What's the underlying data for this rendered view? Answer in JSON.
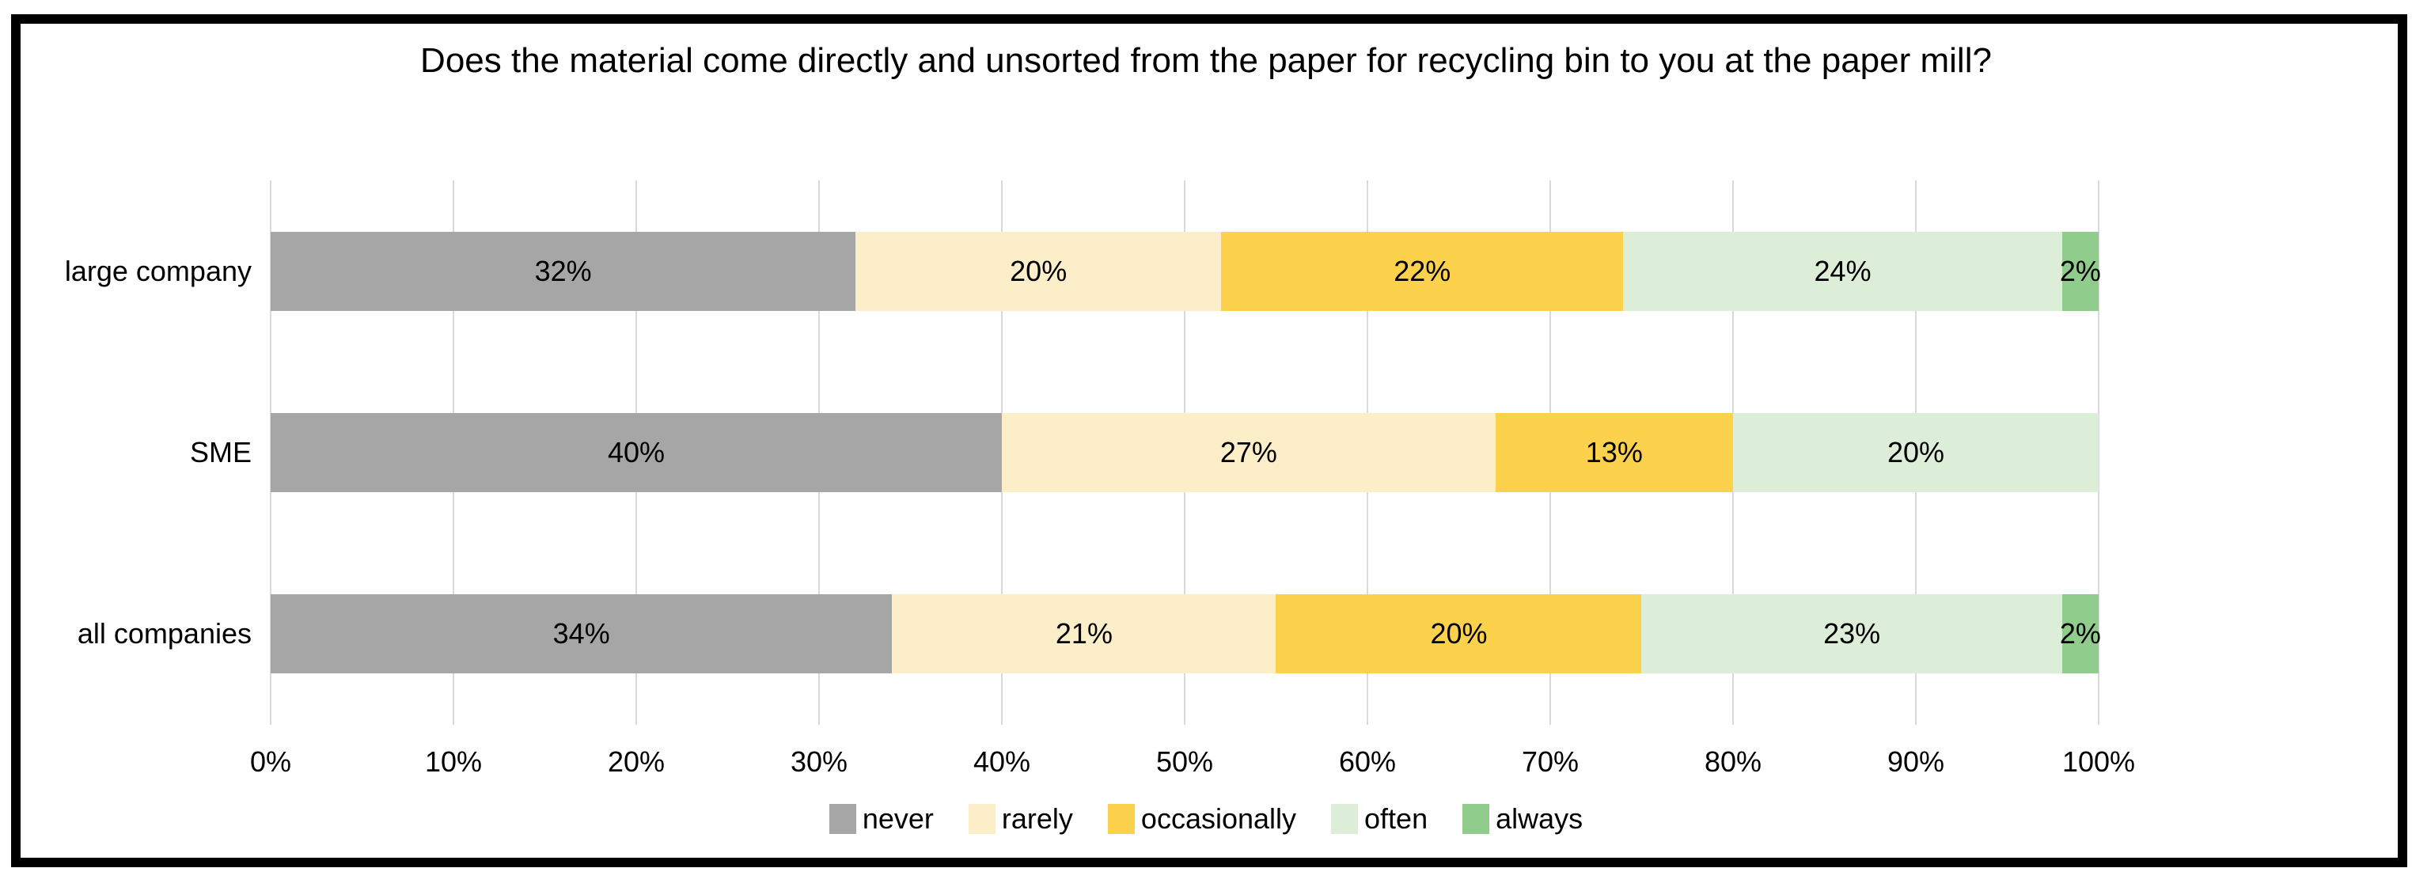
{
  "chart_data": {
    "type": "bar",
    "orientation": "horizontal",
    "stacked": true,
    "title": "Does the material come directly and unsorted from the paper for recycling bin to you at the paper mill?",
    "categories": [
      "large company",
      "SME",
      "all companies"
    ],
    "series": [
      {
        "name": "never",
        "color": "#a6a6a6",
        "values": [
          32,
          40,
          34
        ]
      },
      {
        "name": "rarely",
        "color": "#fdeeca",
        "values": [
          20,
          27,
          21
        ]
      },
      {
        "name": "occasionally",
        "color": "#fcd24d",
        "values": [
          22,
          13,
          20
        ]
      },
      {
        "name": "often",
        "color": "#dcedd8",
        "values": [
          24,
          20,
          23
        ]
      },
      {
        "name": "always",
        "color": "#90cd8c",
        "values": [
          2,
          0,
          2
        ]
      }
    ],
    "value_suffix": "%",
    "data_labels": true,
    "x_ticks": [
      "0%",
      "10%",
      "20%",
      "30%",
      "40%",
      "50%",
      "60%",
      "70%",
      "80%",
      "90%",
      "100%"
    ],
    "xlim": [
      0,
      100
    ],
    "xlabel": "",
    "ylabel": "",
    "grid": "vertical",
    "gridline_color": "#d9d9d9",
    "frame_border_color": "#000000",
    "legend_position": "bottom"
  }
}
